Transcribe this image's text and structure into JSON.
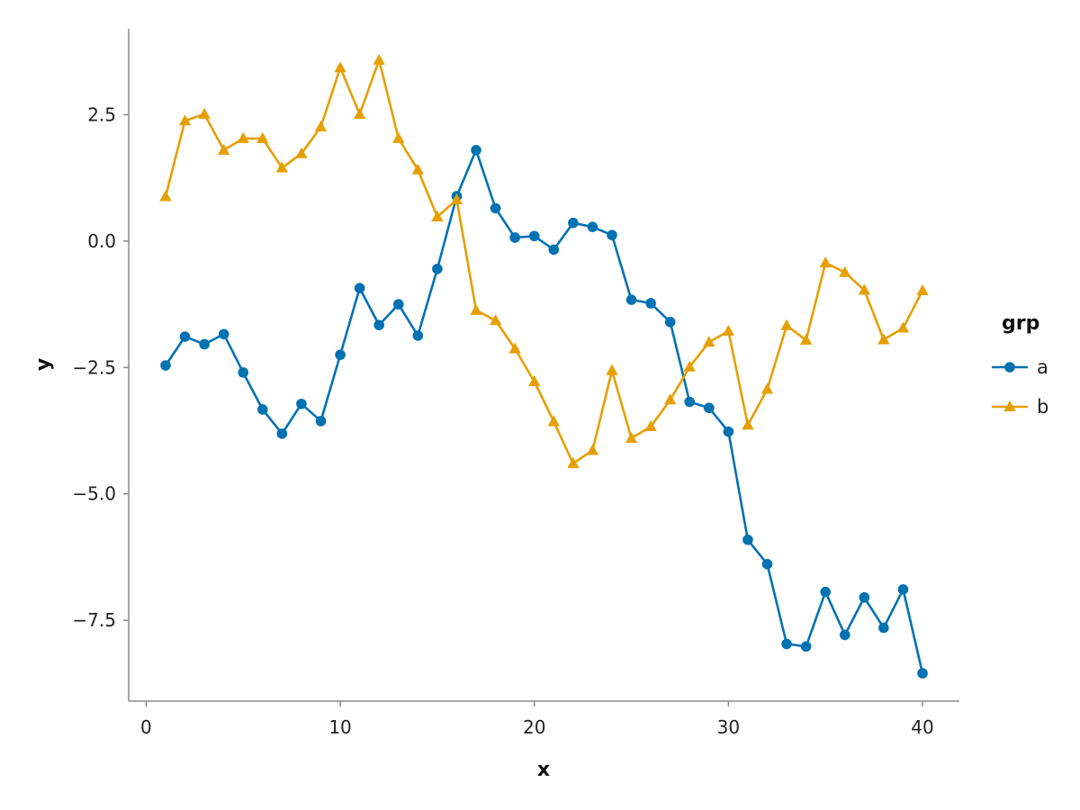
{
  "chart_data": {
    "type": "line",
    "xlabel": "x",
    "ylabel": "y",
    "xlim": [
      -0.9,
      41.9
    ],
    "ylim": [
      -9.1,
      4.2
    ],
    "xticks": [
      0,
      10,
      20,
      30,
      40
    ],
    "xtick_labels": [
      "0",
      "10",
      "20",
      "30",
      "40"
    ],
    "yticks": [
      2.5,
      0.0,
      -2.5,
      -5.0,
      -7.5
    ],
    "ytick_labels": [
      "2.5",
      "0.0",
      "−2.5",
      "−5.0",
      "−7.5"
    ],
    "grid": false,
    "legend": {
      "title": "grp",
      "position": "right"
    },
    "x": [
      1,
      2,
      3,
      4,
      5,
      6,
      7,
      8,
      9,
      10,
      11,
      12,
      13,
      14,
      15,
      16,
      17,
      18,
      19,
      20,
      21,
      22,
      23,
      24,
      25,
      26,
      27,
      28,
      29,
      30,
      31,
      32,
      33,
      34,
      35,
      36,
      37,
      38,
      39,
      40
    ],
    "series": [
      {
        "name": "a",
        "color": "#0072B2",
        "marker": "circle",
        "values": [
          -2.46,
          -1.89,
          -2.04,
          -1.84,
          -2.6,
          -3.33,
          -3.81,
          -3.22,
          -3.56,
          -2.25,
          -0.93,
          -1.66,
          -1.25,
          -1.87,
          -0.55,
          0.89,
          1.8,
          0.65,
          0.07,
          0.1,
          -0.17,
          0.36,
          0.28,
          0.12,
          -1.16,
          -1.23,
          -1.6,
          -3.18,
          -3.3,
          -3.77,
          -5.91,
          -6.39,
          -7.97,
          -8.02,
          -6.94,
          -7.79,
          -7.05,
          -7.65,
          -6.89,
          -8.55
        ]
      },
      {
        "name": "b",
        "color": "#E69F00",
        "marker": "triangle",
        "values": [
          0.88,
          2.38,
          2.51,
          1.8,
          2.03,
          2.03,
          1.45,
          1.73,
          2.26,
          3.43,
          2.51,
          3.58,
          2.03,
          1.41,
          0.48,
          0.82,
          -1.37,
          -1.57,
          -2.13,
          -2.78,
          -3.57,
          -4.4,
          -4.14,
          -2.56,
          -3.9,
          -3.67,
          -3.14,
          -2.49,
          -2.0,
          -1.78,
          -3.64,
          -2.93,
          -1.67,
          -1.96,
          -0.43,
          -0.62,
          -0.97,
          -1.95,
          -1.72,
          -0.98
        ]
      }
    ]
  }
}
